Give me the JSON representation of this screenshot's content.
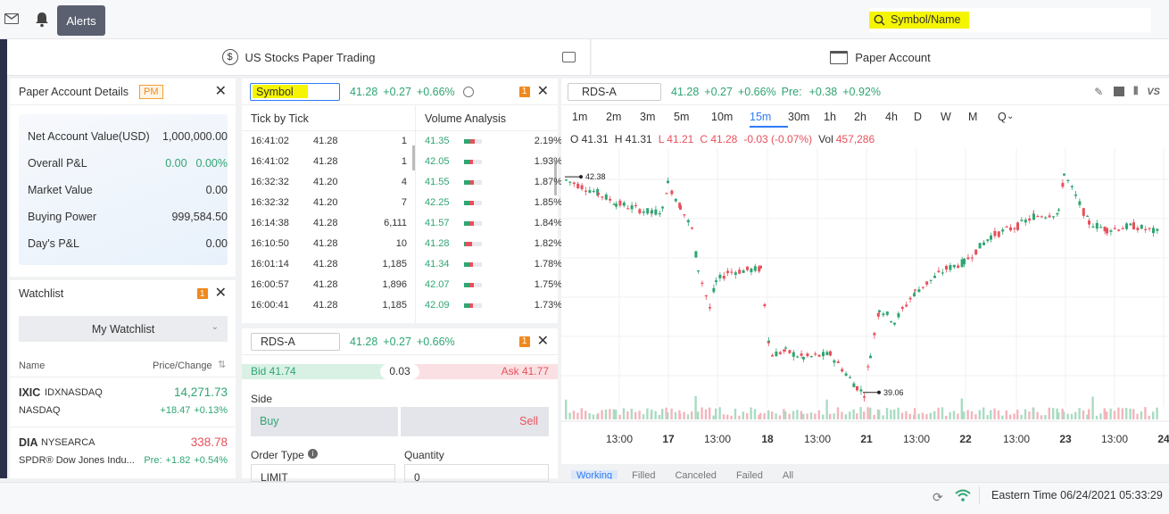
{
  "topbar": {
    "alerts_label": "Alerts",
    "search_placeholder": "Symbol/Name"
  },
  "tabs": {
    "paper_trading": "US Stocks Paper Trading",
    "paper_account": "Paper Account"
  },
  "account": {
    "title": "Paper Account Details",
    "badge": "PM",
    "rows": [
      {
        "label": "Net Account Value(USD)",
        "value": "1,000,000.00"
      },
      {
        "label": "Overall P&L",
        "value": "0.00",
        "value2": "0.00%"
      },
      {
        "label": "Market Value",
        "value": "0.00"
      },
      {
        "label": "Buying Power",
        "value": "999,584.50"
      },
      {
        "label": "Day's P&L",
        "value": "0.00"
      }
    ]
  },
  "watchlist": {
    "title": "Watchlist",
    "badge": "1",
    "select": "My Watchlist",
    "col_name": "Name",
    "col_price": "Price/Change",
    "items": [
      {
        "symbol": "IXIC",
        "exchange": "IDXNASDAQ",
        "price": "14,271.73",
        "name": "NASDAQ",
        "change": "+18.47",
        "pct": "+0.13%",
        "pre": ""
      },
      {
        "symbol": "DIA",
        "exchange": "NYSEARCA",
        "price": "338.78",
        "name": "SPDR® Dow Jones Indu...",
        "change": "+1.82",
        "pct": "+0.54%",
        "pre": "Pre:"
      }
    ]
  },
  "quote": {
    "placeholder": "Symbol",
    "price": "41.28",
    "change": "+0.27",
    "pct": "+0.66%",
    "badge": "1"
  },
  "tick": {
    "title": "Tick by Tick",
    "rows": [
      [
        "16:41:02",
        "41.28",
        "1"
      ],
      [
        "16:41:02",
        "41.28",
        "1"
      ],
      [
        "16:32:32",
        "41.20",
        "4"
      ],
      [
        "16:32:32",
        "41.20",
        "7"
      ],
      [
        "16:14:38",
        "41.28",
        "6,111"
      ],
      [
        "16:10:50",
        "41.28",
        "10"
      ],
      [
        "16:01:14",
        "41.28",
        "1,185"
      ],
      [
        "16:00:57",
        "41.28",
        "1,896"
      ],
      [
        "16:00:41",
        "41.28",
        "1,185"
      ]
    ]
  },
  "volume": {
    "title": "Volume Analysis",
    "rows": [
      {
        "price": "41.35",
        "pct": "2.19%",
        "up": 0.35,
        "dn": 0.25
      },
      {
        "price": "42.05",
        "pct": "1.93%",
        "up": 0.3,
        "dn": 0.2
      },
      {
        "price": "41.55",
        "pct": "1.87%",
        "up": 0.35,
        "dn": 0.2
      },
      {
        "price": "42.25",
        "pct": "1.85%",
        "up": 0.3,
        "dn": 0.25
      },
      {
        "price": "41.57",
        "pct": "1.84%",
        "up": 0.3,
        "dn": 0.25
      },
      {
        "price": "41.28",
        "pct": "1.82%",
        "up": 0.1,
        "dn": 0.35
      },
      {
        "price": "41.34",
        "pct": "1.78%",
        "up": 0.3,
        "dn": 0.2
      },
      {
        "price": "42.07",
        "pct": "1.75%",
        "up": 0.3,
        "dn": 0.25
      },
      {
        "price": "42.09",
        "pct": "1.73%",
        "up": 0.3,
        "dn": 0.2
      }
    ]
  },
  "order": {
    "symbol": "RDS-A",
    "price": "41.28",
    "change": "+0.27",
    "pct": "+0.66%",
    "badge": "1",
    "bid": "Bid 41.74",
    "spread": "0.03",
    "ask": "Ask 41.77",
    "side_label": "Side",
    "buy": "Buy",
    "sell": "Sell",
    "order_type_label": "Order Type",
    "quantity_label": "Quantity",
    "order_type": "LIMIT",
    "quantity": "0"
  },
  "chart": {
    "symbol": "RDS-A",
    "price": "41.28",
    "change": "+0.27",
    "pct": "+0.66%",
    "pre_label": "Pre:",
    "pre_change": "+0.38",
    "pre_pct": "+0.92%",
    "intervals": [
      "1m",
      "2m",
      "3m",
      "5m",
      "10m",
      "15m",
      "30m",
      "1h",
      "2h",
      "4h",
      "D",
      "W",
      "M",
      "Q"
    ],
    "active_interval": "15m",
    "ohlc": {
      "o": "O 41.31",
      "h": "H 41.31",
      "l": "L 41.21",
      "c": "C 41.28",
      "chg": "-0.03 (-0.07%)",
      "vol_label": "Vol",
      "vol": "457,286"
    },
    "high_label": "42.38",
    "low_label": "39.06",
    "xlabels": [
      "13:00",
      "17",
      "13:00",
      "18",
      "13:00",
      "21",
      "13:00",
      "22",
      "13:00",
      "23",
      "13:00",
      "24"
    ],
    "order_tabs": [
      "Working",
      "Filled",
      "Canceled",
      "Failed",
      "All"
    ],
    "colors": {
      "up": "#2fa572",
      "down": "#e8505b",
      "accent": "#2f7bf5"
    }
  },
  "status": {
    "time": "Eastern Time 06/24/2021 05:33:29"
  }
}
